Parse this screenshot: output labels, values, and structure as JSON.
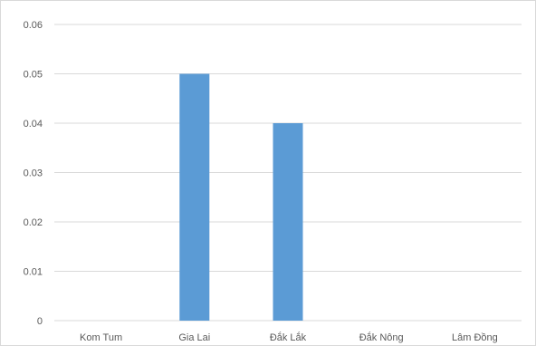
{
  "chart_data": {
    "type": "bar",
    "categories": [
      "Kom Tum",
      "Gia Lai",
      "Đắk Lắk",
      "Đắk Nông",
      "Lâm Đồng"
    ],
    "values": [
      0,
      0.05,
      0.04,
      0,
      0
    ],
    "yticks": [
      "0",
      "0.01",
      "0.02",
      "0.03",
      "0.04",
      "0.05",
      "0.06"
    ],
    "ylim": [
      0,
      0.06
    ],
    "grid": true,
    "bar_color": "#5b9bd5",
    "grid_color": "#d9d9d9",
    "text_color": "#595959"
  }
}
